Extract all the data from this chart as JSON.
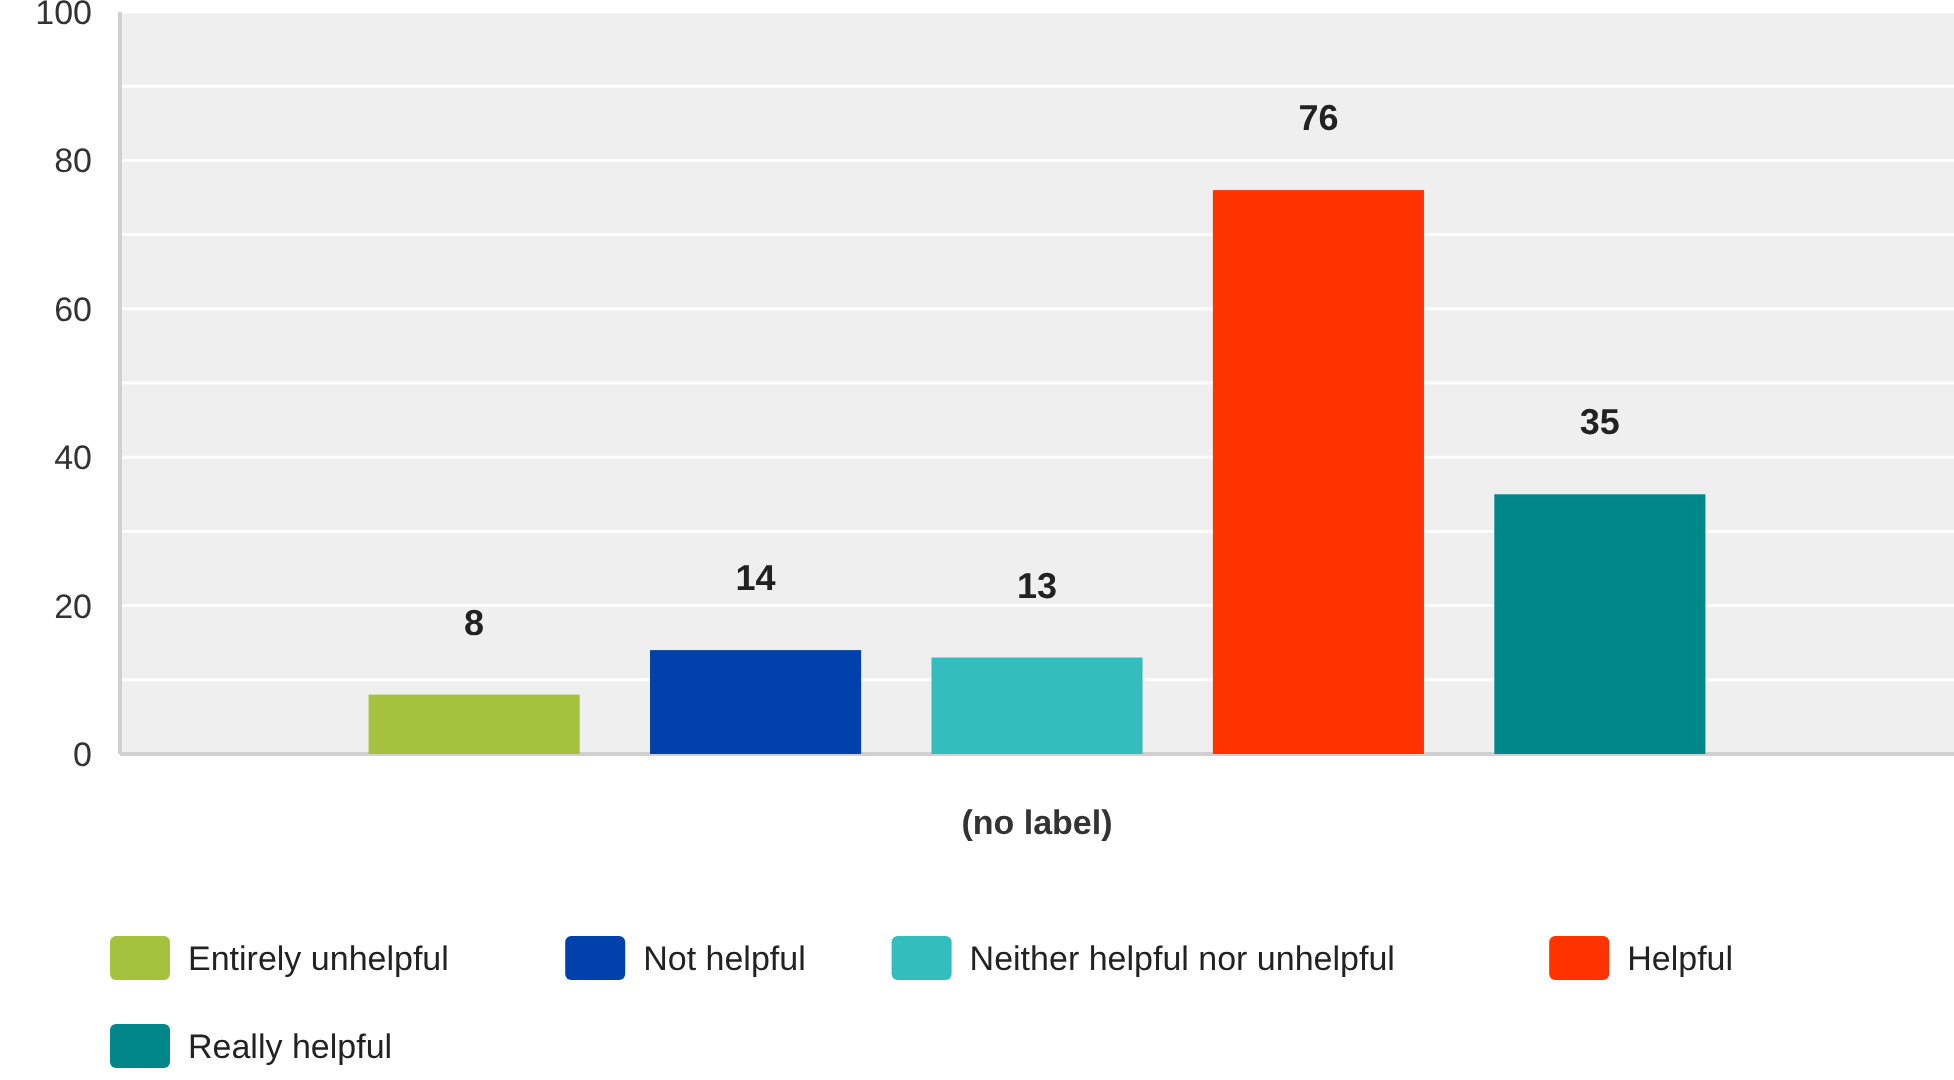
{
  "chart_data": {
    "type": "bar",
    "categories": [
      "(no label)"
    ],
    "series": [
      {
        "name": "Entirely unhelpful",
        "color": "#a5c23e",
        "values": [
          8
        ]
      },
      {
        "name": "Not helpful",
        "color": "#0041ab",
        "values": [
          14
        ]
      },
      {
        "name": "Neither helpful nor unhelpful",
        "color": "#33bdbd",
        "values": [
          13
        ]
      },
      {
        "name": "Helpful",
        "color": "#ff3300",
        "values": [
          76
        ]
      },
      {
        "name": "Really helpful",
        "color": "#01878a",
        "values": [
          35
        ]
      }
    ],
    "ylim": [
      0,
      100
    ],
    "yticks": [
      0,
      {
        "value": 10,
        "label": null
      },
      20,
      {
        "value": 30,
        "label": null
      },
      40,
      {
        "value": 50,
        "label": null
      },
      60,
      {
        "value": 70,
        "label": null
      },
      80,
      {
        "value": 90,
        "label": null
      },
      100
    ],
    "grid": "y",
    "data_labels": true,
    "legend": "bottom"
  }
}
